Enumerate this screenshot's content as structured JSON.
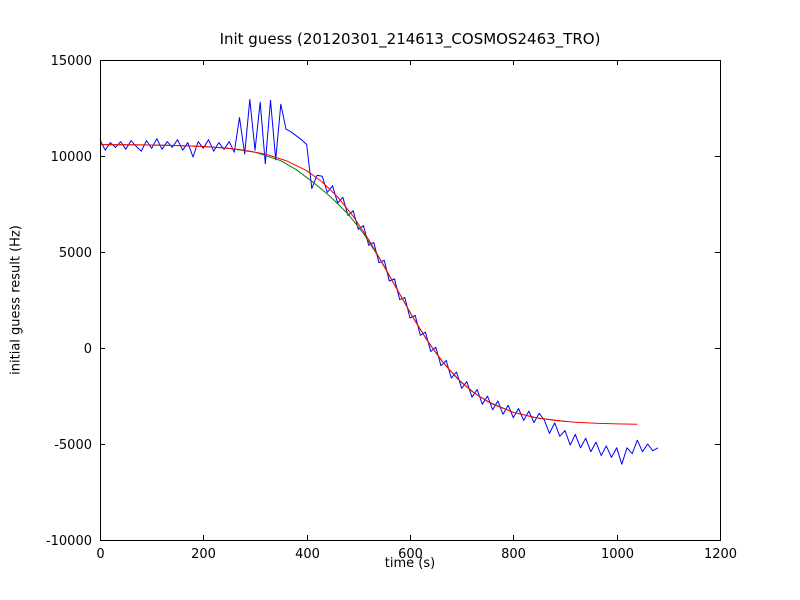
{
  "figure": {
    "background": "#ffffff",
    "frame_color": "#000000"
  },
  "chart_data": {
    "type": "line",
    "title": "Init guess (20120301_214613_COSMOS2463_TRO)",
    "xlabel": "time (s)",
    "ylabel": "initial guess result (Hz)",
    "xlim": [
      0,
      1200
    ],
    "ylim": [
      -10000,
      15000
    ],
    "xticks": [
      0,
      200,
      400,
      600,
      800,
      1000,
      1200
    ],
    "yticks": [
      -10000,
      -5000,
      0,
      5000,
      10000,
      15000
    ],
    "grid": false,
    "legend": "none",
    "series": [
      {
        "name": "blue-measured-data",
        "color": "#0000ff",
        "x_start": 0,
        "x_step": 10,
        "y": [
          10850,
          10300,
          10700,
          10450,
          10750,
          10350,
          10800,
          10500,
          10250,
          10800,
          10400,
          10900,
          10350,
          10750,
          10450,
          10850,
          10300,
          10700,
          9950,
          10750,
          10400,
          10850,
          10250,
          10700,
          10350,
          10750,
          10200,
          12000,
          10100,
          12950,
          10300,
          12800,
          9600,
          12900,
          9800,
          12700,
          11400,
          11250,
          11050,
          10850,
          10600,
          8300,
          9000,
          8950,
          8100,
          8450,
          7550,
          7850,
          6900,
          7150,
          6180,
          6370,
          5350,
          5500,
          4440,
          4570,
          3490,
          3600,
          2520,
          2630,
          1560,
          1700,
          660,
          830,
          -180,
          40,
          -920,
          -650,
          -1560,
          -1250,
          -2100,
          -1750,
          -2560,
          -2160,
          -2930,
          -2500,
          -3220,
          -2760,
          -3450,
          -2980,
          -3630,
          -3150,
          -3770,
          -3290,
          -3880,
          -3400,
          -3750,
          -4450,
          -3900,
          -4600,
          -4300,
          -5050,
          -4500,
          -5200,
          -4700,
          -5400,
          -4900,
          -5600,
          -5100,
          -5700,
          -5200,
          -6050,
          -5200,
          -5500,
          -4800,
          -5400,
          -5000,
          -5350,
          -5200
        ]
      },
      {
        "name": "green-fit",
        "color": "#008000",
        "x": [
          0,
          50,
          100,
          150,
          200,
          250,
          300,
          350,
          380,
          410,
          430,
          450,
          480,
          510,
          540,
          570,
          600,
          630,
          660,
          690,
          720,
          750,
          800,
          850,
          900
        ],
        "y": [
          10595,
          10587,
          10573,
          10546,
          10496,
          10397,
          10199,
          9756,
          9288,
          8683,
          8248,
          7779,
          6980,
          5966,
          4707,
          3293,
          1857,
          527,
          -620,
          -1547,
          -2260,
          -2786,
          -3351,
          -3659,
          -3823
        ]
      },
      {
        "name": "red-fit",
        "color": "#ff0000",
        "x": [
          0,
          40,
          80,
          120,
          160,
          200,
          240,
          280,
          320,
          360,
          400,
          430,
          460,
          490,
          520,
          550,
          580,
          610,
          640,
          670,
          700,
          730,
          760,
          800,
          840,
          880,
          920,
          960,
          1000,
          1040
        ],
        "y": [
          10595,
          10588,
          10579,
          10564,
          10538,
          10496,
          10423,
          10302,
          10097,
          9763,
          9233,
          8648,
          7862,
          6860,
          5647,
          4268,
          2814,
          1398,
          120,
          -953,
          -1809,
          -2452,
          -2928,
          -3351,
          -3612,
          -3769,
          -3864,
          -3920,
          -3953,
          -3973
        ]
      }
    ]
  }
}
